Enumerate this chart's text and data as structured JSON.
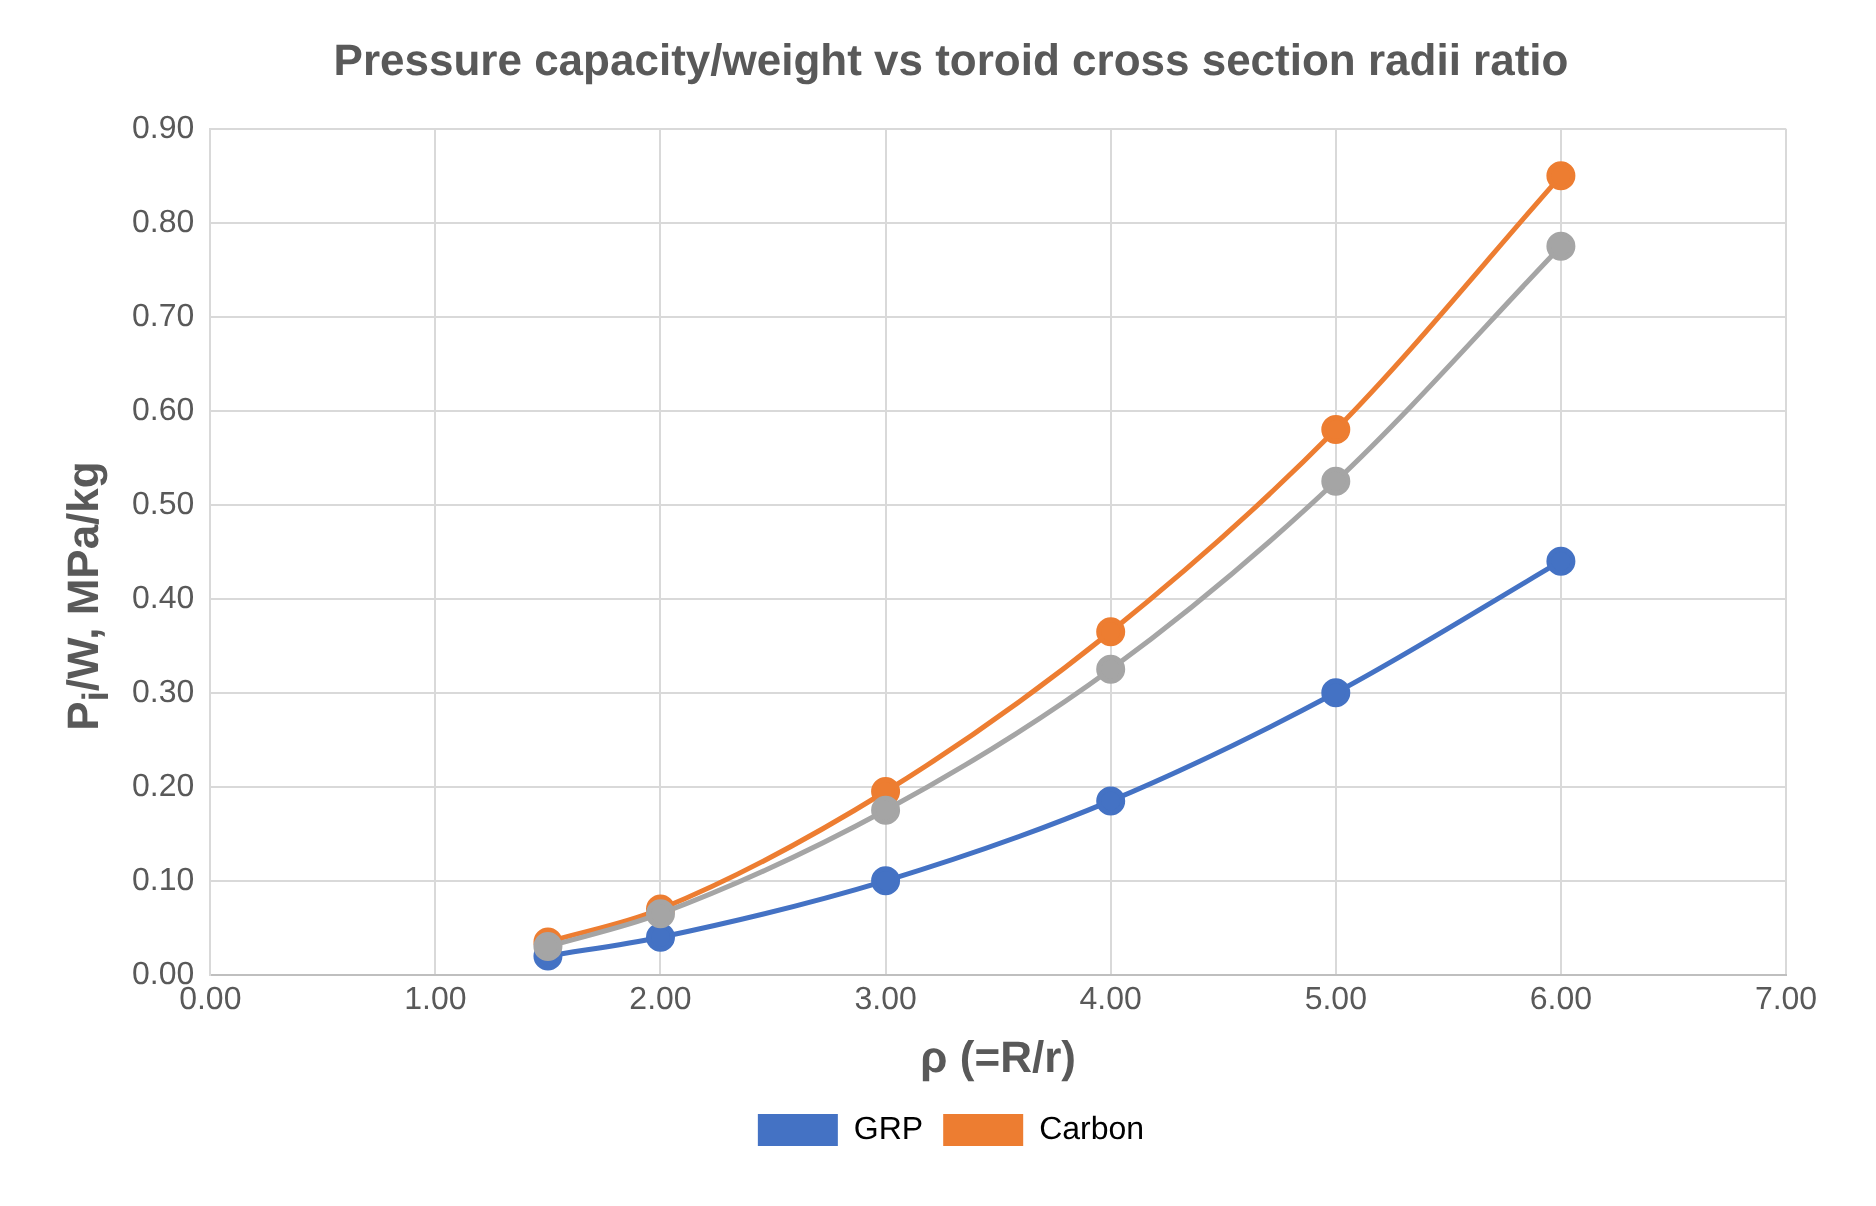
{
  "chart_data": {
    "type": "line",
    "title": "Pressure capacity/weight vs toroid cross section radii ratio",
    "xlabel": "ρ (=R/r)",
    "ylabel": "P$_{i}$/W, MPa/kg",
    "x": [
      1.5,
      2,
      3,
      4,
      5,
      6
    ],
    "series": [
      {
        "name": "GRP",
        "color": "#4472c4",
        "values": [
          0.02,
          0.04,
          0.1,
          0.185,
          0.3,
          0.44
        ]
      },
      {
        "name": "Carbon",
        "color": "#ed7d31",
        "values": [
          0.035,
          0.07,
          0.195,
          0.365,
          0.58,
          0.85
        ]
      },
      {
        "color": "#a5a5a5",
        "values": [
          0.03,
          0.065,
          0.175,
          0.325,
          0.525,
          0.775
        ]
      }
    ],
    "xlim": [
      0,
      7
    ],
    "xticks": [
      {
        "value": 0,
        "label": "0.00"
      },
      {
        "value": 1,
        "label": "1.00"
      },
      {
        "value": 2,
        "label": "2.00"
      },
      {
        "value": 3,
        "label": "3.00"
      },
      {
        "value": 4,
        "label": "4.00"
      },
      {
        "value": 5,
        "label": "5.00"
      },
      {
        "value": 6,
        "label": "6.00"
      },
      {
        "value": 7,
        "label": "7.00"
      }
    ],
    "ylim": [
      0,
      0.9
    ],
    "yticks": [
      {
        "value": 0,
        "label": "0.00"
      },
      {
        "value": 0.1,
        "label": "0.10"
      },
      {
        "value": 0.2,
        "label": "0.20"
      },
      {
        "value": 0.3,
        "label": "0.30"
      },
      {
        "value": 0.4,
        "label": "0.40"
      },
      {
        "value": 0.5,
        "label": "0.50"
      },
      {
        "value": 0.6,
        "label": "0.60"
      },
      {
        "value": 0.7,
        "label": "0.70"
      },
      {
        "value": 0.8,
        "label": "0.80"
      },
      {
        "value": 0.9,
        "label": "0.90"
      }
    ],
    "grid": true,
    "legend": "bottom",
    "marker": "circle",
    "line_style": "solid"
  }
}
